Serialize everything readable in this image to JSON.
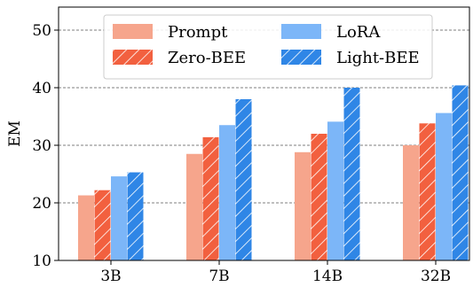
{
  "chart_data": {
    "type": "bar",
    "title": "",
    "xlabel": "",
    "ylabel": "EM",
    "ylim": [
      10,
      54
    ],
    "yticks": [
      "10",
      "20",
      "30",
      "40",
      "50"
    ],
    "categories": [
      "3B",
      "7B",
      "14B",
      "32B"
    ],
    "grid": "horizontal dashed",
    "legend_position": "top",
    "series": [
      {
        "name": "Prompt",
        "values": [
          21.3,
          28.5,
          28.8,
          30.0
        ],
        "color": "#f6a58c",
        "hatched": false
      },
      {
        "name": "Zero-BEE",
        "values": [
          22.2,
          31.4,
          32.0,
          33.8
        ],
        "color": "#f2603f",
        "hatched": true
      },
      {
        "name": "LoRA",
        "values": [
          24.6,
          33.5,
          34.1,
          35.6
        ],
        "color": "#7cb6f8",
        "hatched": false
      },
      {
        "name": "Light-BEE",
        "values": [
          25.3,
          38.0,
          40.0,
          40.4
        ],
        "color": "#2f86e6",
        "hatched": true
      }
    ]
  }
}
